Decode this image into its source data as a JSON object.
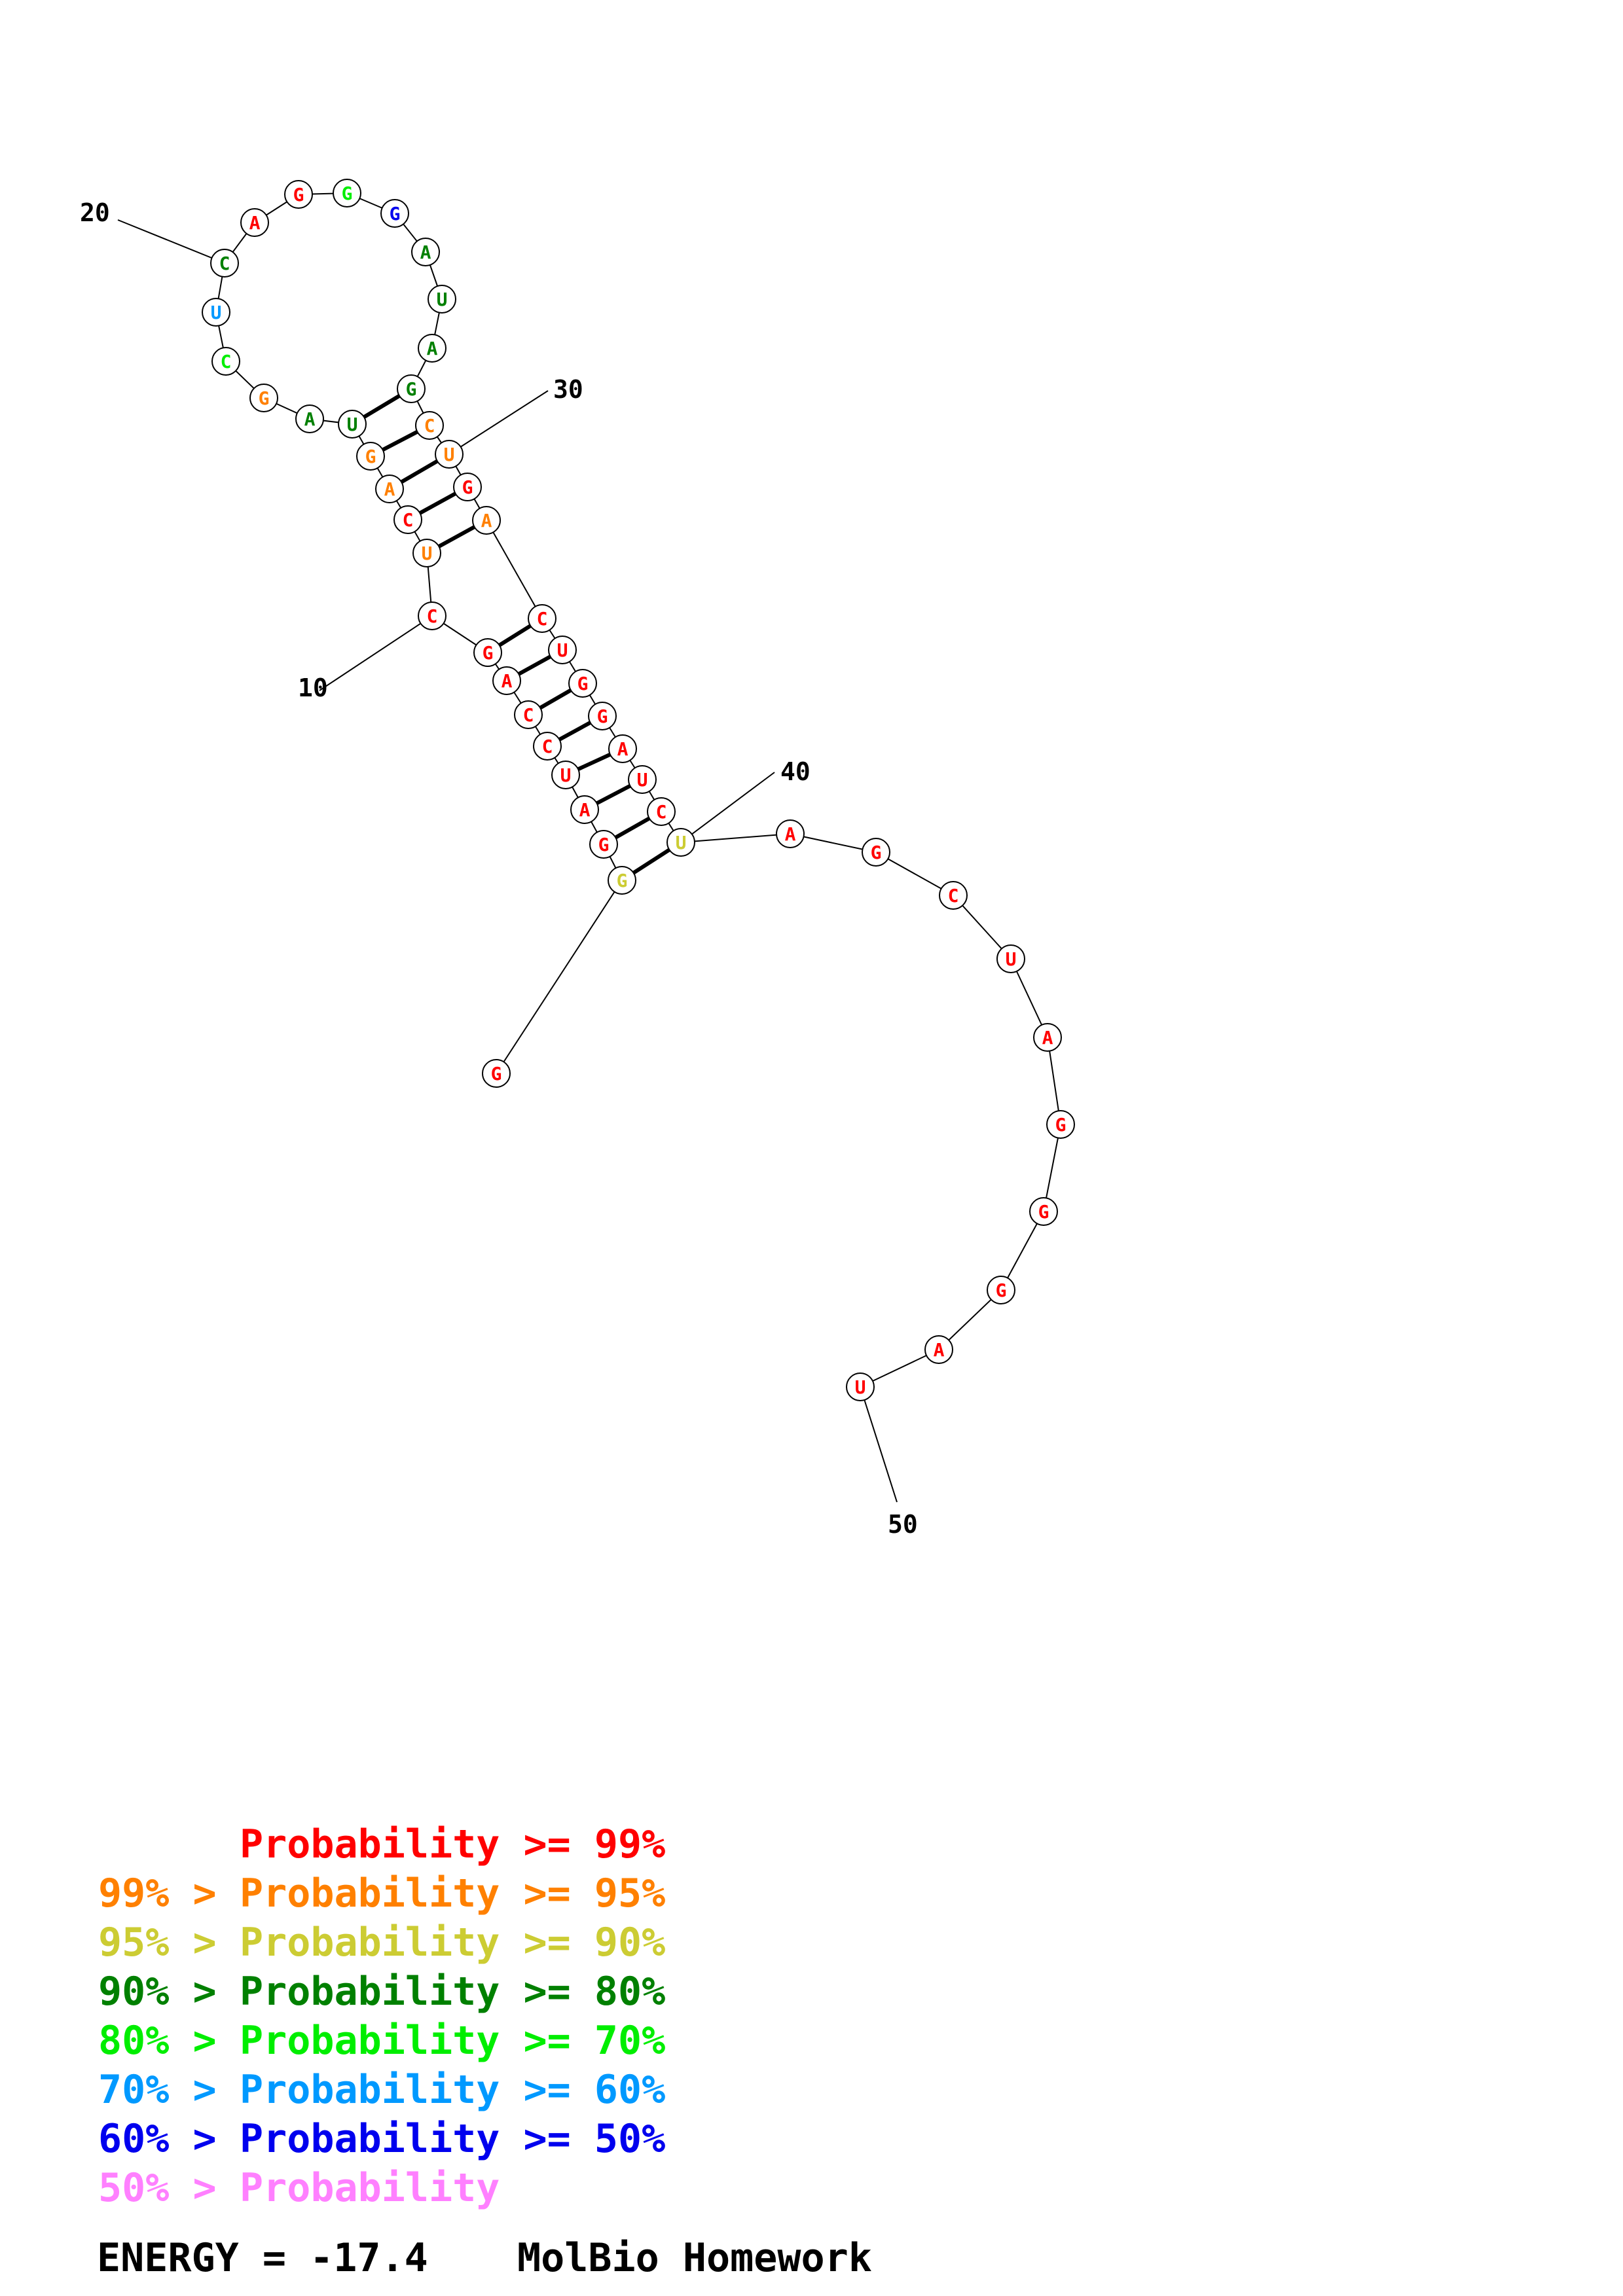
{
  "structure": {
    "bases": [
      {
        "n": 1,
        "letter": "G",
        "tier": 0
      },
      {
        "n": 2,
        "letter": "G",
        "tier": 2
      },
      {
        "n": 3,
        "letter": "G",
        "tier": 0
      },
      {
        "n": 4,
        "letter": "A",
        "tier": 0
      },
      {
        "n": 5,
        "letter": "U",
        "tier": 0
      },
      {
        "n": 6,
        "letter": "C",
        "tier": 0
      },
      {
        "n": 7,
        "letter": "C",
        "tier": 0
      },
      {
        "n": 8,
        "letter": "A",
        "tier": 0
      },
      {
        "n": 9,
        "letter": "G",
        "tier": 0
      },
      {
        "n": 10,
        "letter": "C",
        "tier": 0
      },
      {
        "n": 11,
        "letter": "U",
        "tier": 1
      },
      {
        "n": 12,
        "letter": "C",
        "tier": 0
      },
      {
        "n": 13,
        "letter": "A",
        "tier": 1
      },
      {
        "n": 14,
        "letter": "G",
        "tier": 1
      },
      {
        "n": 15,
        "letter": "U",
        "tier": 3
      },
      {
        "n": 16,
        "letter": "A",
        "tier": 3
      },
      {
        "n": 17,
        "letter": "G",
        "tier": 1
      },
      {
        "n": 18,
        "letter": "C",
        "tier": 4
      },
      {
        "n": 19,
        "letter": "U",
        "tier": 5
      },
      {
        "n": 20,
        "letter": "C",
        "tier": 3
      },
      {
        "n": 21,
        "letter": "A",
        "tier": 0
      },
      {
        "n": 22,
        "letter": "G",
        "tier": 0
      },
      {
        "n": 23,
        "letter": "G",
        "tier": 4
      },
      {
        "n": 24,
        "letter": "G",
        "tier": 6
      },
      {
        "n": 25,
        "letter": "A",
        "tier": 3
      },
      {
        "n": 26,
        "letter": "U",
        "tier": 3
      },
      {
        "n": 27,
        "letter": "A",
        "tier": 3
      },
      {
        "n": 28,
        "letter": "G",
        "tier": 3
      },
      {
        "n": 29,
        "letter": "C",
        "tier": 1
      },
      {
        "n": 30,
        "letter": "U",
        "tier": 1
      },
      {
        "n": 31,
        "letter": "G",
        "tier": 0
      },
      {
        "n": 32,
        "letter": "A",
        "tier": 1
      },
      {
        "n": 33,
        "letter": "C",
        "tier": 0
      },
      {
        "n": 34,
        "letter": "U",
        "tier": 0
      },
      {
        "n": 35,
        "letter": "G",
        "tier": 0
      },
      {
        "n": 36,
        "letter": "G",
        "tier": 0
      },
      {
        "n": 37,
        "letter": "A",
        "tier": 0
      },
      {
        "n": 38,
        "letter": "U",
        "tier": 0
      },
      {
        "n": 39,
        "letter": "C",
        "tier": 0
      },
      {
        "n": 40,
        "letter": "U",
        "tier": 2
      },
      {
        "n": 41,
        "letter": "A",
        "tier": 0
      },
      {
        "n": 42,
        "letter": "G",
        "tier": 0
      },
      {
        "n": 43,
        "letter": "C",
        "tier": 0
      },
      {
        "n": 44,
        "letter": "U",
        "tier": 0
      },
      {
        "n": 45,
        "letter": "A",
        "tier": 0
      },
      {
        "n": 46,
        "letter": "G",
        "tier": 0
      },
      {
        "n": 47,
        "letter": "G",
        "tier": 0
      },
      {
        "n": 48,
        "letter": "G",
        "tier": 0
      },
      {
        "n": 49,
        "letter": "A",
        "tier": 0
      },
      {
        "n": 50,
        "letter": "U",
        "tier": 0
      }
    ],
    "pairs": [
      [
        2,
        40
      ],
      [
        3,
        39
      ],
      [
        4,
        38
      ],
      [
        5,
        37
      ],
      [
        6,
        36
      ],
      [
        7,
        35
      ],
      [
        8,
        34
      ],
      [
        9,
        33
      ],
      [
        11,
        32
      ],
      [
        12,
        31
      ],
      [
        13,
        30
      ],
      [
        14,
        29
      ],
      [
        15,
        28
      ]
    ],
    "position_labels": [
      "10",
      "20",
      "30",
      "40",
      "50"
    ]
  },
  "legend": [
    {
      "prefix": "",
      "label": "Probability >= 99%",
      "color": "#ff0000"
    },
    {
      "prefix": "99% > ",
      "label": "Probability >= 95%",
      "color": "#ff8000"
    },
    {
      "prefix": "95% > ",
      "label": "Probability >= 90%",
      "color": "#cccc33"
    },
    {
      "prefix": "90% > ",
      "label": "Probability >= 80%",
      "color": "#008000"
    },
    {
      "prefix": "80% > ",
      "label": "Probability >= 70%",
      "color": "#00ee00"
    },
    {
      "prefix": "70% > ",
      "label": "Probability >= 60%",
      "color": "#0099ff"
    },
    {
      "prefix": "60% > ",
      "label": "Probability >= 50%",
      "color": "#0000ee"
    },
    {
      "prefix": "50% > ",
      "label": "Probability",
      "color": "#ff80ff"
    }
  ],
  "footer": {
    "energy": "ENERGY = -17.4",
    "title": "MolBio Homework"
  }
}
